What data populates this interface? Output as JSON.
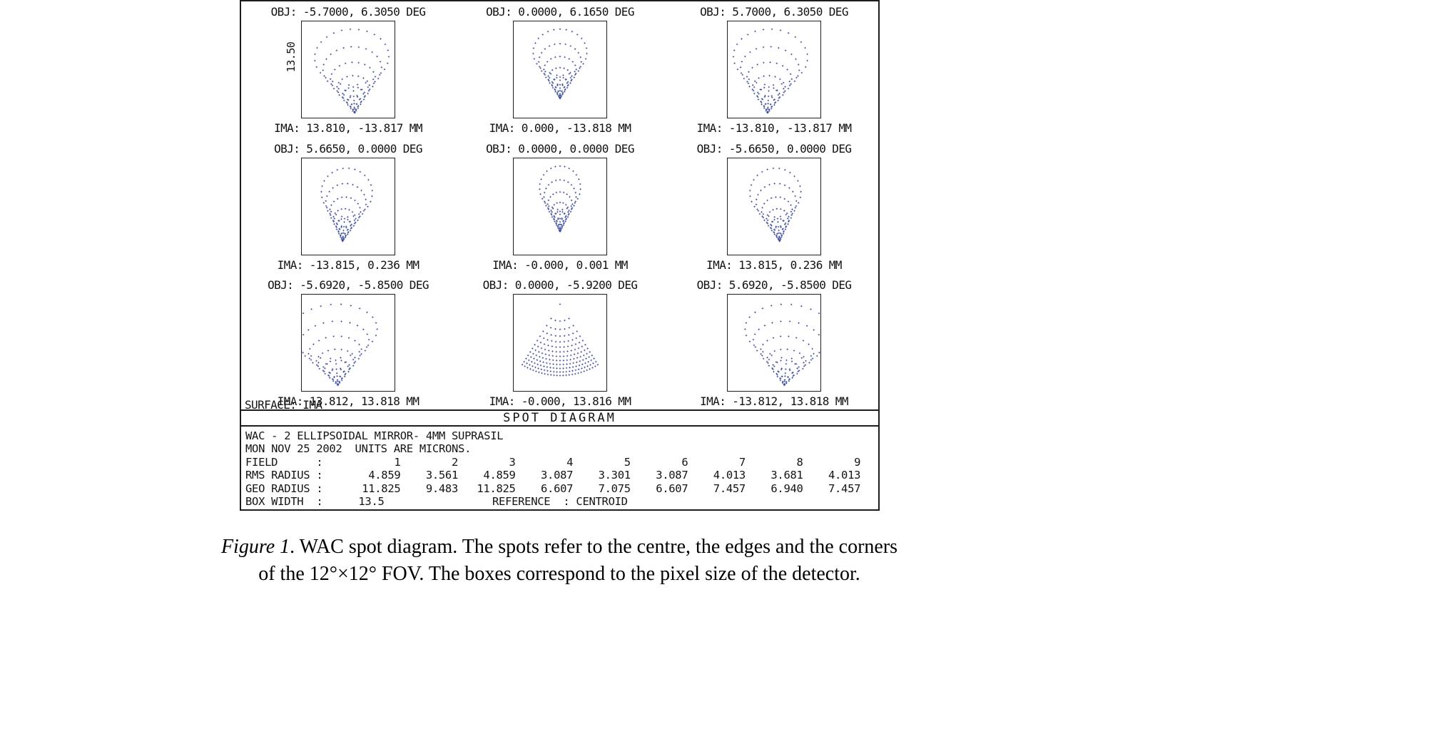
{
  "spot_color": "#3a4a9c",
  "figure": {
    "scale_label": "13.50",
    "surface_label": "SURFACE: IMA",
    "title": "SPOT DIAGRAM",
    "header_line1": "WAC - 2 ELLIPSOIDAL MIRROR- 4MM SUPRASIL",
    "header_line2": "MON NOV 25 2002  UNITS ARE MICRONS.",
    "stat_rows": [
      {
        "label": "FIELD      :",
        "values": [
          "1",
          "2",
          "3",
          "4",
          "5",
          "6",
          "7",
          "8",
          "9"
        ]
      },
      {
        "label": "RMS RADIUS :",
        "values": [
          "4.859",
          "3.561",
          "4.859",
          "3.087",
          "3.301",
          "3.087",
          "4.013",
          "3.681",
          "4.013"
        ]
      },
      {
        "label": "GEO RADIUS :",
        "values": [
          "11.825",
          "9.483",
          "11.825",
          "6.607",
          "7.075",
          "6.607",
          "7.457",
          "6.940",
          "7.457"
        ]
      }
    ],
    "box_width_label": "BOX WIDTH  :",
    "box_width_value": "13.5",
    "reference_text": "REFERENCE  : CENTROID",
    "panels": [
      {
        "obj": "OBJ: -5.7000, 6.3050 DEG",
        "ima": "IMA: 13.810, -13.817 MM",
        "pattern": {
          "type": "coma",
          "tip": [
            0.57,
            0.95
          ],
          "angle": 93,
          "len": 0.87,
          "width": 0.8,
          "rings": 9
        }
      },
      {
        "obj": "OBJ: 0.0000, 6.1650 DEG",
        "ima": "IMA: 0.000, -13.818 MM",
        "pattern": {
          "type": "coma",
          "tip": [
            0.5,
            0.8
          ],
          "angle": 90,
          "len": 0.72,
          "width": 0.58,
          "rings": 9
        }
      },
      {
        "obj": "OBJ: 5.7000, 6.3050 DEG",
        "ima": "IMA: -13.810, -13.817 MM",
        "pattern": {
          "type": "coma",
          "tip": [
            0.43,
            0.95
          ],
          "angle": 87,
          "len": 0.87,
          "width": 0.8,
          "rings": 9
        }
      },
      {
        "obj": "OBJ: 5.6650, 0.0000 DEG",
        "ima": "IMA: -13.815, 0.236 MM",
        "pattern": {
          "type": "coma",
          "tip": [
            0.44,
            0.86
          ],
          "angle": 85,
          "len": 0.76,
          "width": 0.55,
          "rings": 9
        }
      },
      {
        "obj": "OBJ: 0.0000, 0.0000 DEG",
        "ima": "IMA: -0.000, 0.001 MM",
        "pattern": {
          "type": "coma",
          "tip": [
            0.5,
            0.76
          ],
          "angle": 90,
          "len": 0.68,
          "width": 0.44,
          "rings": 9
        }
      },
      {
        "obj": "OBJ: -5.6650, 0.0000 DEG",
        "ima": "IMA: 13.815, 0.236 MM",
        "pattern": {
          "type": "coma",
          "tip": [
            0.56,
            0.86
          ],
          "angle": 95,
          "len": 0.76,
          "width": 0.55,
          "rings": 9
        }
      },
      {
        "obj": "OBJ: -5.6920, -5.8500 DEG",
        "ima": "IMA: 13.812, 13.818 MM",
        "pattern": {
          "type": "coma",
          "tip": [
            0.39,
            0.94
          ],
          "angle": 95,
          "len": 0.84,
          "width": 0.95,
          "rings": 9
        }
      },
      {
        "obj": "OBJ: 0.0000, -5.9200 DEG",
        "ima": "IMA: -0.000, 13.816 MM",
        "pattern": {
          "type": "fan",
          "tip": [
            0.5,
            0.1
          ],
          "angle": 270,
          "len": 0.74,
          "half": 32,
          "bunch": 0.58,
          "rings": 12
        }
      },
      {
        "obj": "OBJ: 5.6920, -5.8500 DEG",
        "ima": "IMA: -13.812, 13.818 MM",
        "pattern": {
          "type": "coma",
          "tip": [
            0.61,
            0.94
          ],
          "angle": 85,
          "len": 0.84,
          "width": 0.95,
          "rings": 9
        }
      }
    ]
  },
  "caption": {
    "figure_label": "Figure 1",
    "line1_rest": ". WAC spot diagram. The spots refer to the centre, the edges and the corners",
    "line2": "of the 12°×12° FOV. The boxes correspond to the pixel size of the detector."
  },
  "chart_data": {
    "type": "scatter",
    "title": "SPOT DIAGRAM",
    "system": "WAC - 2 ELLIPSOIDAL MIRROR- 4MM SUPRASIL",
    "date": "MON NOV 25 2002",
    "units": "MICRONS",
    "surface": "IMA",
    "reference": "CENTROID",
    "box_width": 13.5,
    "grid": "3x3 spot panels, one per field point",
    "fields": [
      {
        "field": 1,
        "obj_deg": [
          -5.7,
          6.305
        ],
        "ima_mm": [
          13.81,
          -13.817
        ],
        "rms_radius": 4.859,
        "geo_radius": 11.825
      },
      {
        "field": 2,
        "obj_deg": [
          0.0,
          6.165
        ],
        "ima_mm": [
          0.0,
          -13.818
        ],
        "rms_radius": 3.561,
        "geo_radius": 9.483
      },
      {
        "field": 3,
        "obj_deg": [
          5.7,
          6.305
        ],
        "ima_mm": [
          -13.81,
          -13.817
        ],
        "rms_radius": 4.859,
        "geo_radius": 11.825
      },
      {
        "field": 4,
        "obj_deg": [
          5.665,
          0.0
        ],
        "ima_mm": [
          -13.815,
          0.236
        ],
        "rms_radius": 3.087,
        "geo_radius": 6.607
      },
      {
        "field": 5,
        "obj_deg": [
          0.0,
          0.0
        ],
        "ima_mm": [
          -0.0,
          0.001
        ],
        "rms_radius": 3.301,
        "geo_radius": 7.075
      },
      {
        "field": 6,
        "obj_deg": [
          -5.665,
          0.0
        ],
        "ima_mm": [
          13.815,
          0.236
        ],
        "rms_radius": 3.087,
        "geo_radius": 6.607
      },
      {
        "field": 7,
        "obj_deg": [
          -5.692,
          -5.85
        ],
        "ima_mm": [
          13.812,
          13.818
        ],
        "rms_radius": 4.013,
        "geo_radius": 7.457
      },
      {
        "field": 8,
        "obj_deg": [
          0.0,
          -5.92
        ],
        "ima_mm": [
          -0.0,
          13.816
        ],
        "rms_radius": 3.681,
        "geo_radius": 6.94
      },
      {
        "field": 9,
        "obj_deg": [
          5.692,
          -5.85
        ],
        "ima_mm": [
          -13.812,
          13.818
        ],
        "rms_radius": 4.013,
        "geo_radius": 7.457
      }
    ]
  }
}
